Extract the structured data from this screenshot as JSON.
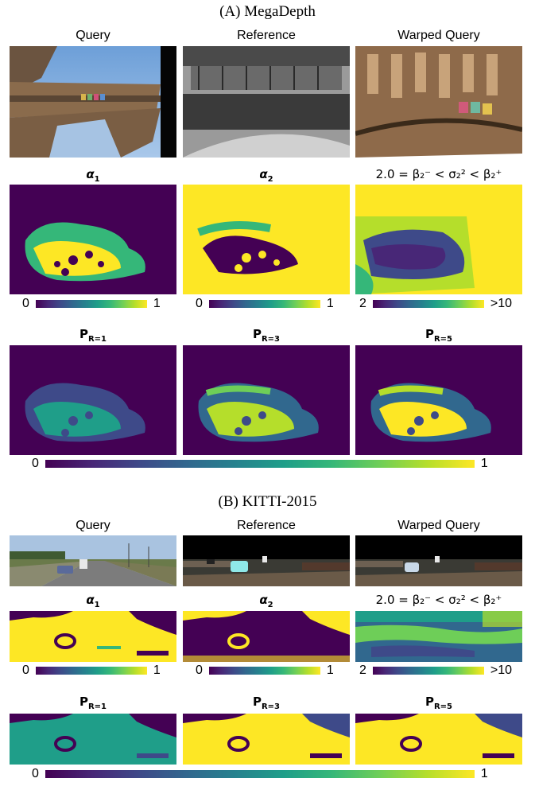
{
  "sections": [
    {
      "title": "(A) MegaDepth",
      "image_labels": [
        "Query",
        "Reference",
        "Warped Query"
      ],
      "alpha_labels": {
        "a1": "α",
        "a1_sub": "1",
        "a2": "α",
        "a2_sub": "2",
        "sigma": "2.0 = β₂⁻ < σ₂² < β₂⁺"
      },
      "alpha_colorbars": [
        {
          "min": "0",
          "max": "1"
        },
        {
          "min": "0",
          "max": "1"
        },
        {
          "min": "2",
          "max": ">10"
        }
      ],
      "p_labels": [
        {
          "base": "P",
          "sub": "R=1"
        },
        {
          "base": "P",
          "sub": "R=3"
        },
        {
          "base": "P",
          "sub": "R=5"
        }
      ],
      "p_colorbar": {
        "min": "0",
        "max": "1"
      }
    },
    {
      "title": "(B) KITTI-2015",
      "image_labels": [
        "Query",
        "Reference",
        "Warped Query"
      ],
      "alpha_labels": {
        "a1": "α",
        "a1_sub": "1",
        "a2": "α",
        "a2_sub": "2",
        "sigma": "2.0 = β₂⁻ < σ₂² < β₂⁺"
      },
      "alpha_colorbars": [
        {
          "min": "0",
          "max": "1"
        },
        {
          "min": "0",
          "max": "1"
        },
        {
          "min": "2",
          "max": ">10"
        }
      ],
      "p_labels": [
        {
          "base": "P",
          "sub": "R=1"
        },
        {
          "base": "P",
          "sub": "R=3"
        },
        {
          "base": "P",
          "sub": "R=5"
        }
      ],
      "p_colorbar": {
        "min": "0",
        "max": "1"
      }
    }
  ],
  "colors": {
    "viridis_low": "#440154",
    "viridis_high": "#fde725",
    "viridis_mid": "#21918c"
  }
}
